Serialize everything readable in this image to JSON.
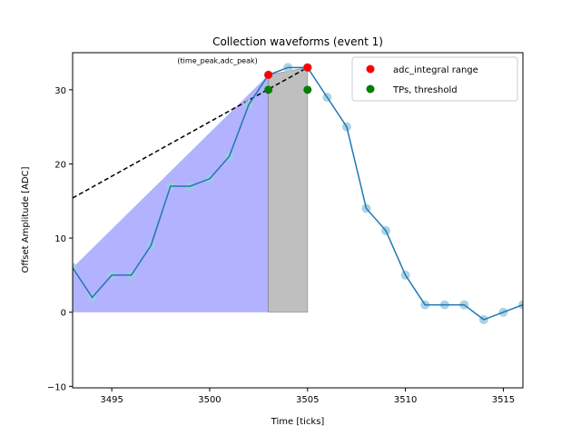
{
  "chart_data": {
    "type": "line",
    "title": "Collection waveforms (event 1)",
    "xlabel": "Time [ticks]",
    "ylabel": "Offset Amplitude [ADC]",
    "xlim": [
      3493,
      3516
    ],
    "ylim": [
      -10.2,
      35
    ],
    "xticks": [
      3495,
      3500,
      3505,
      3510,
      3515
    ],
    "yticks": [
      -10,
      0,
      10,
      20,
      30
    ],
    "grid": false,
    "legend_position": "top-right",
    "waveform": {
      "x": [
        3493,
        3494,
        3495,
        3496,
        3497,
        3498,
        3499,
        3500,
        3501,
        3502,
        3503,
        3504,
        3505,
        3506,
        3507,
        3508,
        3509,
        3510,
        3511,
        3512,
        3513,
        3514,
        3515,
        3516
      ],
      "y": [
        6,
        2,
        5,
        5,
        9,
        17,
        17,
        18,
        21,
        28,
        32,
        33,
        33,
        29,
        25,
        14,
        11,
        5,
        1,
        1,
        1,
        -1,
        0,
        1
      ],
      "color": "#1f77b4",
      "marker_color": "#9ecae1"
    },
    "integral_region": {
      "x_start": 3493,
      "x_end": 3503,
      "fill": "#b2b2ff",
      "edge": "#7777dd"
    },
    "tp_region": {
      "x_start": 3503,
      "x_end": 3505,
      "fill": "#bfbfbf"
    },
    "baseline_line": {
      "x": [
        3493,
        3505
      ],
      "y": [
        15.4,
        33
      ],
      "style": "dashed",
      "color": "#000000"
    },
    "series": [
      {
        "name": "adc_integral range",
        "color": "#ff0000",
        "x": [
          3503,
          3505
        ],
        "y": [
          32,
          33
        ]
      },
      {
        "name": "TPs, threshold",
        "color": "#008000",
        "x": [
          3503,
          3505
        ],
        "y": [
          30,
          30
        ]
      }
    ],
    "annotation": {
      "text": "(time_peak,adc_peak)",
      "x": 3500.4,
      "y": 33.6
    }
  }
}
